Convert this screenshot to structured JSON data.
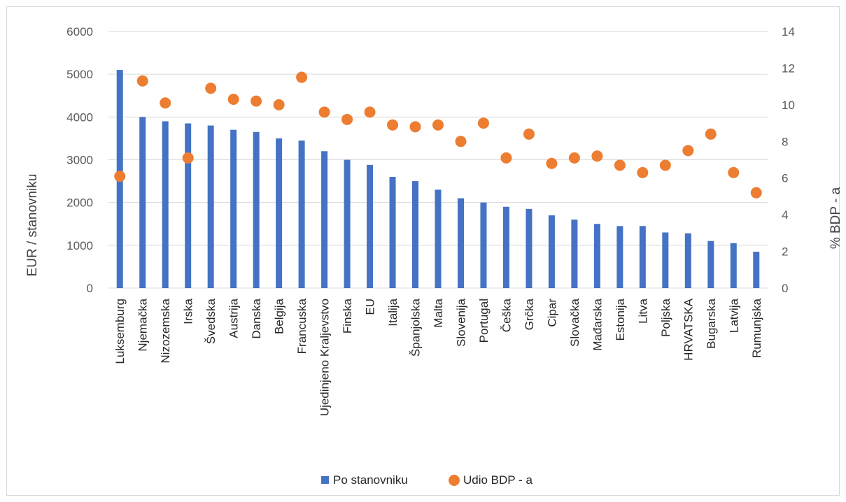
{
  "chart_data": {
    "type": "bar",
    "categories": [
      "Luksemburg",
      "Njemačka",
      "Nizozemska",
      "Irska",
      "Švedska",
      "Austrija",
      "Danska",
      "Belgija",
      "Francuska",
      "Ujedinjeno Kraljevstvo",
      "Finska",
      "EU",
      "Italija",
      "Španjolska",
      "Malta",
      "Slovenija",
      "Portugal",
      "Češka",
      "Grčka",
      "Cipar",
      "Slovačka",
      "Mađarska",
      "Estonija",
      "Litva",
      "Poljska",
      "HRVATSKA",
      "Bugarska",
      "Latvija",
      "Rumunjska"
    ],
    "series": [
      {
        "name": "Po stanovniku",
        "type": "bar",
        "axis": "left",
        "color": "#4472c4",
        "values": [
          5100,
          4000,
          3900,
          3850,
          3800,
          3700,
          3650,
          3500,
          3450,
          3200,
          3000,
          2880,
          2600,
          2500,
          2300,
          2100,
          2000,
          1900,
          1850,
          1700,
          1600,
          1500,
          1450,
          1450,
          1300,
          1280,
          1100,
          1050,
          850
        ]
      },
      {
        "name": "Udio BDP - a",
        "type": "scatter",
        "axis": "right",
        "color": "#ed7d31",
        "values": [
          6.1,
          11.3,
          10.1,
          7.1,
          10.9,
          10.3,
          10.2,
          10.0,
          11.5,
          9.6,
          9.2,
          9.6,
          8.9,
          8.8,
          8.9,
          8.0,
          9.0,
          7.1,
          8.4,
          6.8,
          7.1,
          7.2,
          6.7,
          6.3,
          6.7,
          7.5,
          8.4,
          6.3,
          5.2
        ]
      }
    ],
    "ylabel": "EUR / stanovniku",
    "y2label": "% BDP - a",
    "ylim": [
      0,
      6000
    ],
    "y2lim": [
      0,
      14
    ],
    "yticks": [
      0,
      1000,
      2000,
      3000,
      4000,
      5000,
      6000
    ],
    "y2ticks": [
      0,
      2,
      4,
      6,
      8,
      10,
      12,
      14
    ],
    "grid": true,
    "legend_position": "bottom"
  }
}
